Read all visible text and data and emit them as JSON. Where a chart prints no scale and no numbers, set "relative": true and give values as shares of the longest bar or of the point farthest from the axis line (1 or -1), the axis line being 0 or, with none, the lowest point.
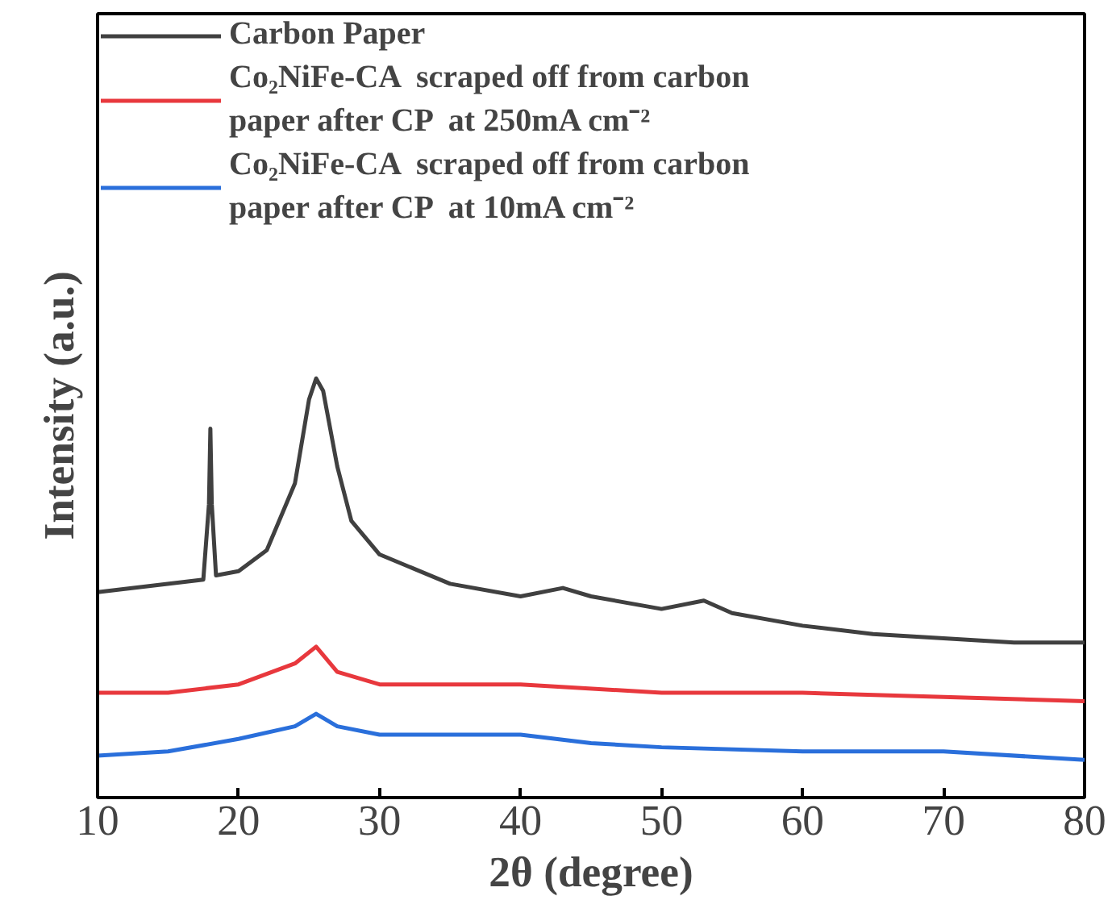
{
  "chart_data": {
    "type": "line",
    "xlabel": "2θ (degree)",
    "ylabel": "Intensity (a.u.)",
    "relative": true,
    "xlim": [
      10,
      80
    ],
    "xticks": [
      10,
      20,
      30,
      40,
      50,
      60,
      70,
      80
    ],
    "tick_labels": "x",
    "grid": false,
    "legend": "top left",
    "marker": "none",
    "line_style": "solid",
    "series": [
      {
        "name": "Carbon Paper",
        "color": "#404040",
        "x": [
          10,
          17.5,
          17.9,
          18,
          18.1,
          18.4,
          20,
          22,
          24,
          25,
          25.5,
          26,
          27,
          28,
          30,
          35,
          40,
          43,
          45,
          50,
          53,
          55,
          60,
          65,
          70,
          75,
          80
        ],
        "values": [
          0.49,
          0.52,
          0.7,
          0.88,
          0.7,
          0.53,
          0.54,
          0.59,
          0.75,
          0.95,
          1.0,
          0.97,
          0.79,
          0.66,
          0.58,
          0.51,
          0.48,
          0.5,
          0.48,
          0.45,
          0.47,
          0.44,
          0.41,
          0.39,
          0.38,
          0.37,
          0.37
        ]
      },
      {
        "name": "Co₂NiFe-CA  scraped off from carbon\npaper after CP  at 250mA cm⁻²",
        "color": "#e8383d",
        "x": [
          10,
          15,
          20,
          24,
          25.5,
          27,
          30,
          40,
          50,
          60,
          70,
          80
        ],
        "values": [
          0.25,
          0.25,
          0.27,
          0.32,
          0.36,
          0.3,
          0.27,
          0.27,
          0.25,
          0.25,
          0.24,
          0.23
        ]
      },
      {
        "name": "Co₂NiFe-CA  scraped off from carbon\npaper after CP  at 10mA cm⁻²",
        "color": "#2a6fdb",
        "x": [
          10,
          15,
          20,
          24,
          25.5,
          27,
          30,
          40,
          45,
          50,
          60,
          70,
          80
        ],
        "values": [
          0.1,
          0.11,
          0.14,
          0.17,
          0.2,
          0.17,
          0.15,
          0.15,
          0.13,
          0.12,
          0.11,
          0.11,
          0.09
        ]
      }
    ]
  }
}
